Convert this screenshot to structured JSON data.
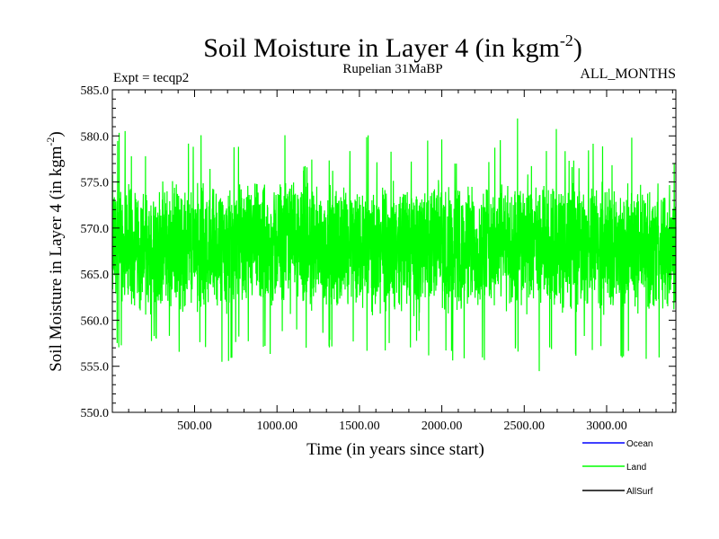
{
  "header": {
    "title_main": "Soil Moisture in Layer 4 (in kgm",
    "title_sup": "-2",
    "title_end": ")",
    "expt": "Expt = tecqp2",
    "period": "Rupelian  31MaBP",
    "months": "ALL_MONTHS"
  },
  "chart_data": {
    "type": "line",
    "xlabel": "Time (in years since start)",
    "ylabel_main": "Soil Moisture in Layer 4 (in kgm",
    "ylabel_sup": "-2",
    "ylabel_end": ")",
    "xlim": [
      1,
      3420
    ],
    "ylim": [
      550.0,
      585.0
    ],
    "xticks": [
      500,
      1000,
      1500,
      2000,
      2500,
      3000
    ],
    "xtick_labels": [
      "500.00",
      "1000.00",
      "1500.00",
      "2000.00",
      "2500.00",
      "3000.00"
    ],
    "yticks": [
      550,
      555,
      560,
      565,
      570,
      575,
      580,
      585
    ],
    "ytick_labels": [
      "550.0",
      "555.0",
      "560.0",
      "565.0",
      "570.0",
      "575.0",
      "580.0",
      "585.0"
    ],
    "grid": false,
    "legend_placement": "bottom-right",
    "series": [
      {
        "name": "Ocean",
        "color": "#0000ff",
        "values": []
      },
      {
        "name": "Land",
        "color": "#00ff00",
        "x": [
          1,
          60,
          120,
          180,
          240,
          300,
          360,
          420,
          480,
          540,
          600,
          660,
          720,
          780,
          840,
          900,
          960,
          1020,
          1080,
          1140,
          1200,
          1260,
          1320,
          1380,
          1440,
          1500,
          1560,
          1620,
          1680,
          1740,
          1800,
          1860,
          1920,
          1980,
          2040,
          2100,
          2160,
          2220,
          2280,
          2340,
          2400,
          2460,
          2520,
          2580,
          2640,
          2700,
          2760,
          2820,
          2880,
          2940,
          3000,
          3060,
          3120,
          3180,
          3240,
          3300,
          3360,
          3420
        ],
        "mean": [
          568.0,
          567.8,
          568.2,
          567.9,
          567.6,
          568.1,
          568.3,
          567.7,
          567.9,
          568.2,
          567.8,
          568.0,
          567.5,
          568.1,
          567.9,
          568.3,
          567.7,
          568.6,
          568.9,
          568.2,
          567.8,
          568.0,
          567.6,
          567.9,
          568.2,
          568.0,
          567.7,
          568.1,
          567.9,
          568.3,
          567.8,
          567.6,
          568.0,
          568.2,
          567.9,
          567.5,
          568.1,
          567.8,
          568.0,
          568.2,
          567.9,
          568.3,
          567.7,
          567.9,
          568.1,
          567.8,
          568.0,
          567.7,
          568.2,
          567.9,
          568.0,
          567.8,
          568.1,
          567.6,
          567.9,
          568.0,
          567.8,
          568.0
        ],
        "max": [
          576.5,
          583.0,
          578.0,
          580.8,
          575.8,
          576.3,
          578.2,
          578.8,
          579.6,
          580.6,
          576.9,
          577.9,
          578.8,
          579.0,
          576.4,
          578.5,
          579.3,
          580.4,
          581.2,
          576.8,
          578.0,
          580.2,
          577.3,
          576.5,
          578.7,
          579.8,
          580.7,
          576.2,
          578.3,
          582.0,
          578.5,
          577.0,
          579.9,
          580.2,
          578.6,
          577.2,
          579.6,
          578.2,
          577.8,
          580.0,
          578.9,
          583.0,
          576.9,
          577.8,
          579.5,
          580.9,
          578.2,
          577.0,
          579.1,
          580.3,
          577.9,
          577.0,
          579.2,
          581.2,
          578.9,
          576.3,
          579.5,
          577.0
        ],
        "min": [
          557.0,
          556.5,
          557.3,
          555.6,
          557.8,
          558.2,
          556.9,
          555.5,
          557.5,
          557.0,
          556.0,
          555.3,
          555.6,
          557.8,
          556.3,
          557.1,
          556.2,
          557.4,
          560.5,
          557.0,
          556.0,
          557.8,
          556.8,
          555.8,
          557.4,
          556.6,
          555.4,
          553.7,
          557.2,
          556.5,
          556.0,
          557.9,
          555.8,
          555.1,
          556.9,
          553.3,
          557.6,
          556.1,
          555.0,
          556.4,
          556.8,
          556.2,
          555.2,
          553.8,
          555.5,
          557.0,
          554.0,
          556.3,
          557.4,
          556.0,
          557.4,
          555.8,
          556.0,
          554.2,
          555.0,
          554.9,
          556.5,
          556.4
        ]
      },
      {
        "name": "AllSurf",
        "color": "#000000",
        "values": []
      }
    ]
  }
}
